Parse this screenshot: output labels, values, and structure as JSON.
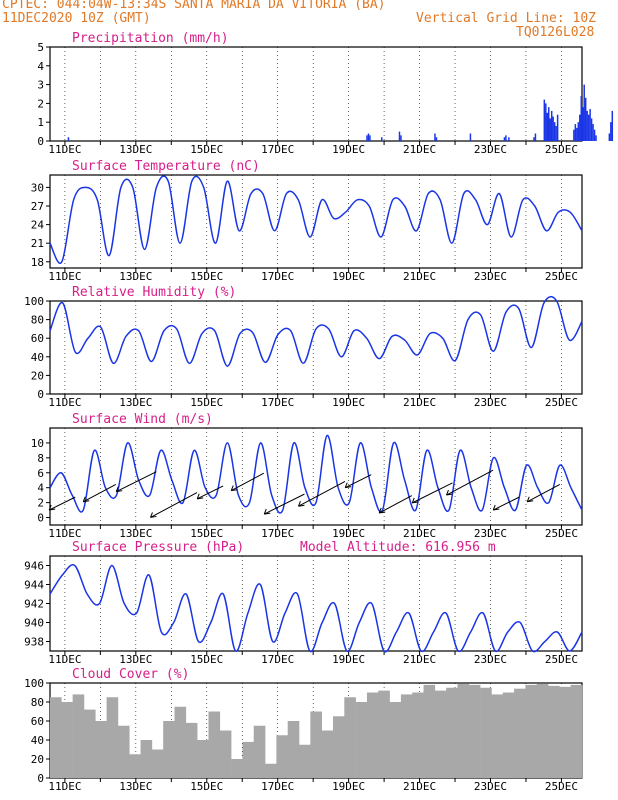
{
  "header": {
    "line1": "CPTEC:  044:04W-13:34S  SANTA MARIA DA VITORIA (BA)",
    "date": "11DEC2020 10Z (GMT)",
    "grid": "Vertical Grid Line: 10Z",
    "code": "TQ0126L028"
  },
  "colors": {
    "header": "#e07a28",
    "title": "#d61f8a",
    "series": "#1a35e6",
    "cloud": "#a8a8a8",
    "frame": "#000000"
  },
  "chart_data": [
    {
      "type": "bar",
      "title": "Precipitation (mm/h)",
      "ylim": [
        0,
        5
      ],
      "yticks": [
        0,
        1,
        2,
        3,
        4,
        5
      ],
      "xticks": [
        "11DEC",
        "13DEC",
        "15DEC",
        "17DEC",
        "19DEC",
        "21DEC",
        "23DEC",
        "25DEC"
      ],
      "x_unit": "hours since 11DEC 00Z",
      "series": [
        {
          "values": [
            [
              12,
              0.2
            ],
            [
              214,
              0.3
            ],
            [
              215,
              0.4
            ],
            [
              216,
              0.3
            ],
            [
              224,
              0.2
            ],
            [
              236,
              0.5
            ],
            [
              237,
              0.3
            ],
            [
              260,
              0.4
            ],
            [
              261,
              0.2
            ],
            [
              284,
              0.4
            ],
            [
              307,
              0.2
            ],
            [
              308,
              0.3
            ],
            [
              310,
              0.2
            ],
            [
              327,
              0.2
            ],
            [
              328,
              0.4
            ],
            [
              334,
              2.2
            ],
            [
              335,
              2.0
            ],
            [
              336,
              1.5
            ],
            [
              337,
              1.8
            ],
            [
              338,
              1.2
            ],
            [
              339,
              1.6
            ],
            [
              340,
              1.3
            ],
            [
              341,
              1.0
            ],
            [
              342,
              0.8
            ],
            [
              343,
              1.4
            ],
            [
              354,
              0.6
            ],
            [
              355,
              0.9
            ],
            [
              356,
              0.7
            ],
            [
              357,
              1.0
            ],
            [
              358,
              1.4
            ],
            [
              359,
              2.4
            ],
            [
              360,
              1.8
            ],
            [
              361,
              3.0
            ],
            [
              362,
              2.3
            ],
            [
              363,
              1.6
            ],
            [
              364,
              1.4
            ],
            [
              365,
              1.7
            ],
            [
              366,
              1.2
            ],
            [
              367,
              0.9
            ],
            [
              368,
              0.6
            ],
            [
              369,
              0.3
            ],
            [
              378,
              0.4
            ],
            [
              379,
              1.0
            ],
            [
              380,
              1.6
            ]
          ]
        }
      ]
    },
    {
      "type": "line",
      "title": "Surface Temperature (nC)",
      "ylim": [
        17,
        32
      ],
      "yticks": [
        18,
        21,
        24,
        27,
        30
      ],
      "xticks": [
        "11DEC",
        "13DEC",
        "15DEC",
        "17DEC",
        "19DEC",
        "21DEC",
        "23DEC",
        "25DEC"
      ],
      "series": [
        {
          "values": [
            21,
            18,
            28,
            30,
            28,
            19,
            30,
            30,
            20,
            30,
            31,
            21,
            31,
            30,
            21,
            31,
            23,
            29,
            29,
            23,
            29,
            28,
            22,
            28,
            25,
            26,
            28,
            27,
            22,
            28,
            27,
            23,
            29,
            28,
            21,
            29,
            28,
            24,
            29,
            22,
            28,
            27,
            23,
            26,
            26,
            23
          ]
        }
      ]
    },
    {
      "type": "line",
      "title": "Relative Humidity (%)",
      "ylim": [
        0,
        100
      ],
      "yticks": [
        0,
        20,
        40,
        60,
        80,
        100
      ],
      "xticks": [
        "11DEC",
        "13DEC",
        "15DEC",
        "17DEC",
        "19DEC",
        "21DEC",
        "23DEC",
        "25DEC"
      ],
      "series": [
        {
          "values": [
            68,
            98,
            45,
            60,
            72,
            33,
            62,
            68,
            35,
            68,
            70,
            33,
            65,
            68,
            30,
            65,
            66,
            34,
            64,
            68,
            33,
            70,
            70,
            40,
            68,
            60,
            38,
            62,
            58,
            42,
            65,
            60,
            36,
            80,
            85,
            46,
            88,
            92,
            50,
            98,
            100,
            58,
            78
          ]
        }
      ]
    },
    {
      "type": "line",
      "title": "Surface Wind (m/s)",
      "ylim": [
        -1,
        12
      ],
      "yticks": [
        0,
        2,
        4,
        6,
        8,
        10
      ],
      "xticks": [
        "11DEC",
        "13DEC",
        "15DEC",
        "17DEC",
        "19DEC",
        "21DEC",
        "23DEC",
        "25DEC"
      ],
      "series": [
        {
          "values": [
            4,
            6,
            3,
            1,
            9,
            4,
            3,
            10,
            5,
            3,
            9,
            5,
            2,
            9,
            4,
            3,
            10,
            3,
            2,
            10,
            3,
            1,
            10,
            4,
            2,
            11,
            4,
            2,
            10,
            4,
            1,
            10,
            5,
            1,
            9,
            4,
            1,
            9,
            4,
            1,
            8,
            4,
            1,
            7,
            4,
            2,
            7,
            4,
            1
          ]
        }
      ],
      "wind_vectors": "arrows plotted along the wind curve"
    },
    {
      "type": "line",
      "title": "Surface Pressure (hPa)",
      "annotation": "Model Altitude: 616.956  m",
      "ylim": [
        937,
        947
      ],
      "yticks": [
        938,
        940,
        942,
        944,
        946
      ],
      "xticks": [
        "11DEC",
        "13DEC",
        "15DEC",
        "17DEC",
        "19DEC",
        "21DEC",
        "23DEC",
        "25DEC"
      ],
      "series": [
        {
          "values": [
            943,
            945,
            946,
            943,
            942,
            946,
            942,
            941,
            945,
            939,
            940,
            943,
            938,
            940,
            943,
            937,
            941,
            944,
            938,
            941,
            943,
            937,
            940,
            942,
            937,
            940,
            942,
            937,
            939,
            941,
            937,
            939,
            941,
            937,
            939,
            941,
            937,
            939,
            940,
            937,
            938,
            939,
            937,
            939
          ]
        }
      ]
    },
    {
      "type": "bar",
      "title": "Cloud Cover (%)",
      "ylim": [
        0,
        100
      ],
      "yticks": [
        0,
        20,
        40,
        60,
        80,
        100
      ],
      "xticks": [
        "11DEC",
        "13DEC",
        "15DEC",
        "17DEC",
        "19DEC",
        "21DEC",
        "23DEC",
        "25DEC"
      ],
      "series": [
        {
          "values": [
            85,
            80,
            88,
            72,
            60,
            85,
            55,
            25,
            40,
            30,
            60,
            75,
            58,
            40,
            70,
            50,
            20,
            38,
            55,
            15,
            45,
            60,
            35,
            70,
            50,
            65,
            85,
            80,
            90,
            92,
            80,
            88,
            90,
            98,
            92,
            95,
            99,
            98,
            95,
            88,
            90,
            94,
            98,
            99,
            97,
            96,
            98
          ]
        }
      ]
    }
  ]
}
